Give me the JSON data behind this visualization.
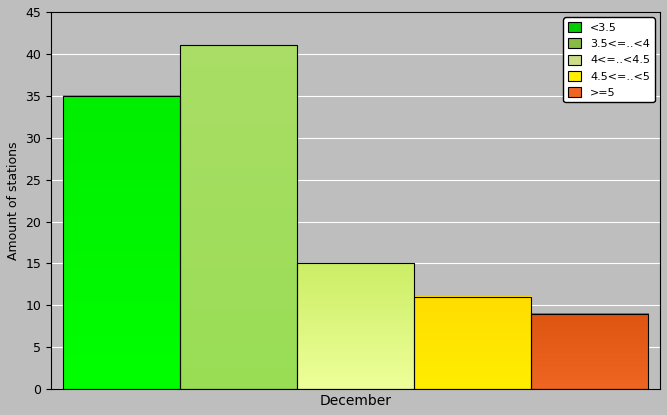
{
  "bars": [
    {
      "label": "<3.5",
      "value": 35,
      "color_bottom": "#00ff00",
      "color_top": "#00ee00",
      "edge_color": "#000000"
    },
    {
      "label": "3.5<=..<4",
      "value": 41,
      "color_bottom": "#99dd55",
      "color_top": "#aade66",
      "edge_color": "#000000"
    },
    {
      "label": "4<=..<4.5",
      "value": 15,
      "color_bottom": "#eeff99",
      "color_top": "#ccee66",
      "edge_color": "#000000"
    },
    {
      "label": "4.5<=..<5",
      "value": 11,
      "color_bottom": "#ffee00",
      "color_top": "#ffdd00",
      "edge_color": "#000000"
    },
    {
      "label": ">=5",
      "value": 9,
      "color_bottom": "#ee6622",
      "color_top": "#dd5511",
      "edge_color": "#000000"
    }
  ],
  "legend_colors": [
    "#00cc00",
    "#88bb44",
    "#ccdd88",
    "#ffee00",
    "#ee6622"
  ],
  "ylabel": "Amount of stations",
  "xlabel": "December",
  "ylim": [
    0,
    45
  ],
  "yticks": [
    0,
    5,
    10,
    15,
    20,
    25,
    30,
    35,
    40,
    45
  ],
  "background_color": "#bebebe",
  "bar_width": 1.0,
  "legend_fontsize": 8,
  "ylabel_fontsize": 9,
  "xlabel_fontsize": 10,
  "tick_fontsize": 9
}
